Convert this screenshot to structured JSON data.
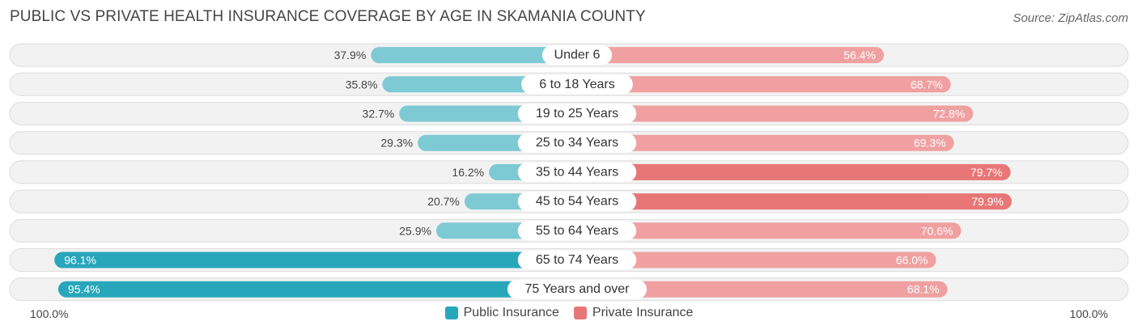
{
  "title": "PUBLIC VS PRIVATE HEALTH INSURANCE COVERAGE BY AGE IN SKAMANIA COUNTY",
  "source": "Source: ZipAtlas.com",
  "axis": {
    "left_label": "100.0%",
    "right_label": "100.0%"
  },
  "colors": {
    "public_light": "#7ecad4",
    "public_dark": "#28a7bb",
    "private_light": "#f0a0a0",
    "private_dark": "#e87676",
    "row_bg": "#f2f2f2",
    "row_border": "#dcdcdc"
  },
  "chart_data": {
    "type": "bar",
    "orientation": "horizontal-diverging",
    "categories": [
      "Under 6",
      "6 to 18 Years",
      "19 to 25 Years",
      "25 to 34 Years",
      "35 to 44 Years",
      "45 to 54 Years",
      "55 to 64 Years",
      "65 to 74 Years",
      "75 Years and over"
    ],
    "series": [
      {
        "name": "Public Insurance",
        "values": [
          37.9,
          35.8,
          32.7,
          29.3,
          16.2,
          20.7,
          25.9,
          96.1,
          95.4
        ],
        "labels": [
          "37.9%",
          "35.8%",
          "32.7%",
          "29.3%",
          "16.2%",
          "20.7%",
          "25.9%",
          "96.1%",
          "95.4%"
        ]
      },
      {
        "name": "Private Insurance",
        "values": [
          56.4,
          68.7,
          72.8,
          69.3,
          79.7,
          79.9,
          70.6,
          66.0,
          68.1
        ],
        "labels": [
          "56.4%",
          "68.7%",
          "72.8%",
          "69.3%",
          "79.7%",
          "79.9%",
          "70.6%",
          "66.0%",
          "68.1%"
        ]
      }
    ],
    "xlim": [
      0,
      100
    ],
    "legend_position": "bottom-center"
  }
}
